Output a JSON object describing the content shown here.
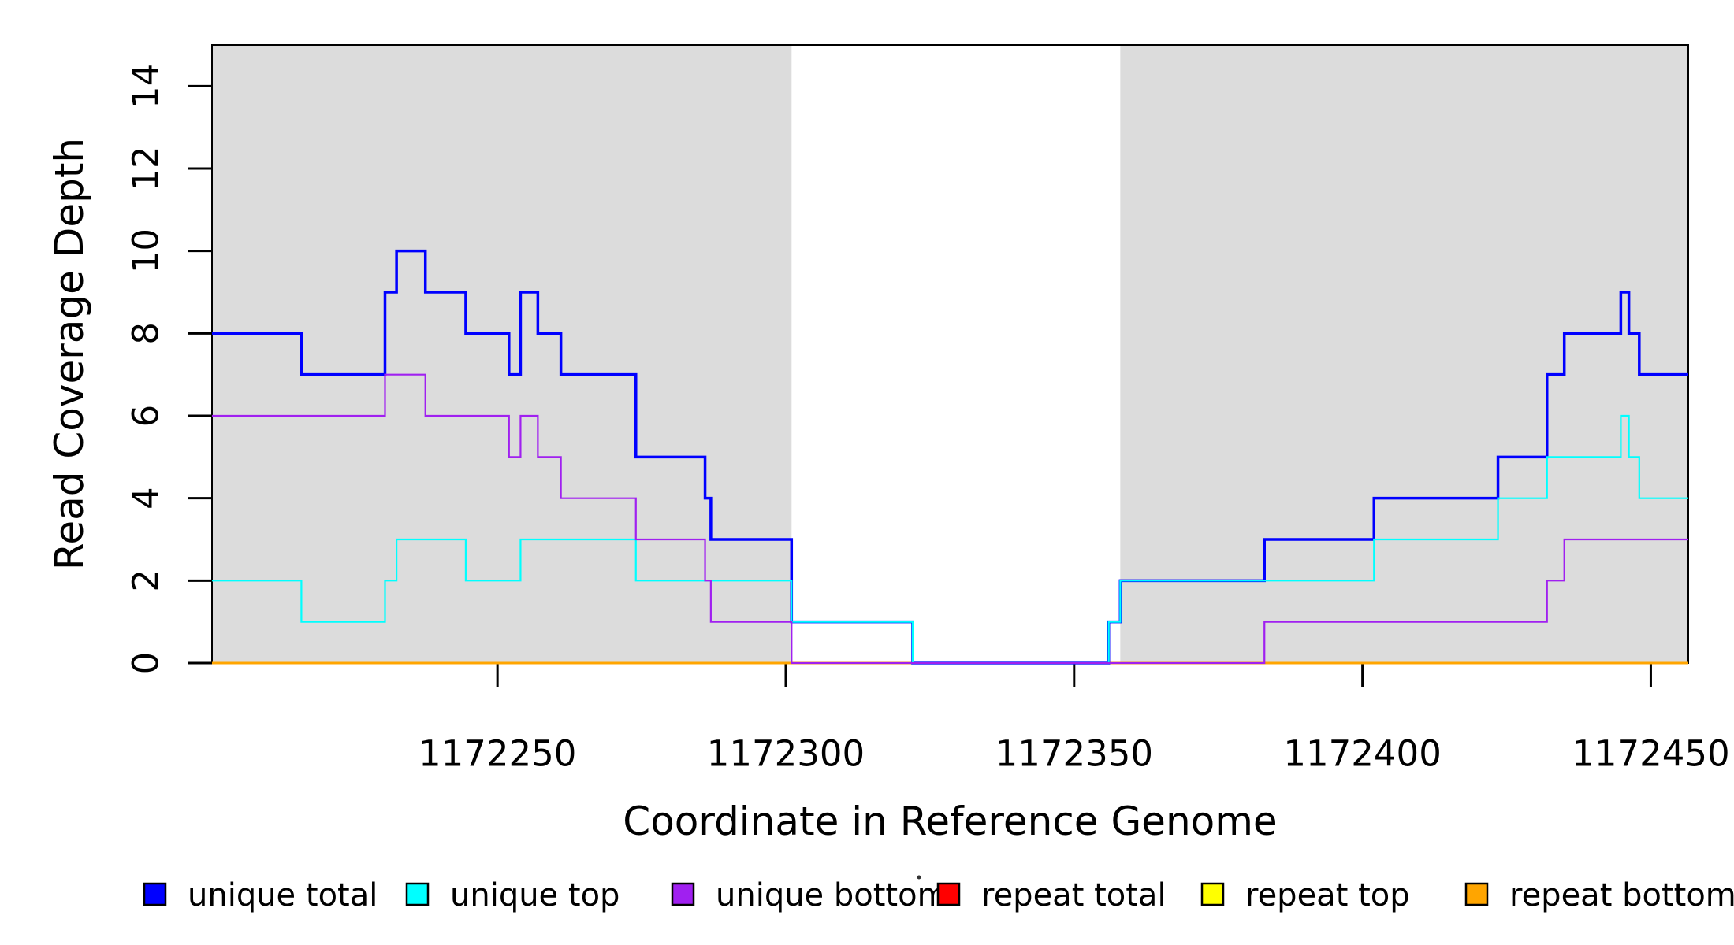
{
  "figure": {
    "background": "#FFFFFF",
    "plot_box_color": "#000000",
    "shade_color": "#DCDCDC",
    "xlabel": "Coordinate in Reference Genome",
    "ylabel": "Read Coverage Depth"
  },
  "chart_data": {
    "type": "line",
    "subtype": "step-coverage",
    "title": "",
    "xlabel": "Coordinate in Reference Genome",
    "ylabel": "Read Coverage Depth",
    "xlim": [
      1172200.5,
      1172456.5
    ],
    "ylim": [
      0,
      15
    ],
    "x_ticks": [
      1172250,
      1172300,
      1172350,
      1172400,
      1172450
    ],
    "y_ticks": [
      0,
      2,
      4,
      6,
      8,
      10,
      12,
      14
    ],
    "grid": false,
    "shaded_regions": [
      {
        "name": "left-gray-region",
        "x0": 1172200.5,
        "x1": 1172301
      },
      {
        "name": "right-gray-region",
        "x0": 1172358,
        "x1": 1172456.5
      }
    ],
    "series": [
      {
        "name": "repeat total",
        "key": "repeat_total",
        "color": "#FF0000",
        "width": 2.5,
        "steps": [
          [
            1172200.5,
            0
          ]
        ]
      },
      {
        "name": "repeat top",
        "key": "repeat_top",
        "color": "#FFFF00",
        "width": 2.5,
        "steps": [
          [
            1172200.5,
            0
          ]
        ]
      },
      {
        "name": "repeat bottom",
        "key": "repeat_bottom",
        "color": "#FFA500",
        "width": 3,
        "steps": [
          [
            1172200.5,
            0
          ]
        ]
      },
      {
        "name": "unique total",
        "key": "unique_total",
        "color": "#0000FF",
        "width": 3.5,
        "steps": [
          [
            1172200.5,
            8
          ],
          [
            1172216,
            7
          ],
          [
            1172230.5,
            9
          ],
          [
            1172232.5,
            10
          ],
          [
            1172237.5,
            9
          ],
          [
            1172244.5,
            8
          ],
          [
            1172252,
            7
          ],
          [
            1172254,
            9
          ],
          [
            1172257,
            8
          ],
          [
            1172261,
            7
          ],
          [
            1172274,
            5
          ],
          [
            1172286,
            4
          ],
          [
            1172287,
            3
          ],
          [
            1172301,
            1
          ],
          [
            1172322,
            0
          ],
          [
            1172356,
            1
          ],
          [
            1172358,
            2
          ],
          [
            1172383,
            3
          ],
          [
            1172402,
            4
          ],
          [
            1172423.5,
            5
          ],
          [
            1172432,
            7
          ],
          [
            1172435,
            8
          ],
          [
            1172444.8,
            9
          ],
          [
            1172446.2,
            8
          ],
          [
            1172448,
            7
          ]
        ]
      },
      {
        "name": "unique top",
        "key": "unique_top",
        "color": "#00FFFF",
        "width": 2.2,
        "steps": [
          [
            1172200.5,
            2
          ],
          [
            1172216,
            1
          ],
          [
            1172230.5,
            2
          ],
          [
            1172232.5,
            3
          ],
          [
            1172244.5,
            2
          ],
          [
            1172254,
            3
          ],
          [
            1172274,
            2
          ],
          [
            1172301,
            1
          ],
          [
            1172322,
            0
          ],
          [
            1172356,
            1
          ],
          [
            1172358,
            2
          ],
          [
            1172402,
            3
          ],
          [
            1172423.5,
            4
          ],
          [
            1172432,
            5
          ],
          [
            1172444.8,
            6
          ],
          [
            1172446.2,
            5
          ],
          [
            1172448,
            4
          ]
        ]
      },
      {
        "name": "unique bottom",
        "key": "unique_bottom",
        "color": "#A020F0",
        "width": 2.2,
        "steps": [
          [
            1172200.5,
            6
          ],
          [
            1172230.5,
            7
          ],
          [
            1172237.5,
            6
          ],
          [
            1172252,
            5
          ],
          [
            1172254,
            6
          ],
          [
            1172257,
            5
          ],
          [
            1172261,
            4
          ],
          [
            1172274,
            3
          ],
          [
            1172286,
            2
          ],
          [
            1172287,
            1
          ],
          [
            1172301,
            0
          ],
          [
            1172383,
            1
          ],
          [
            1172432,
            2
          ],
          [
            1172435,
            3
          ]
        ]
      }
    ],
    "legend": {
      "position": "bottom",
      "entries": [
        {
          "label": "unique total",
          "color": "#0000FF"
        },
        {
          "label": "unique top",
          "color": "#00FFFF"
        },
        {
          "label": "unique bottom",
          "color": "#A020F0"
        },
        {
          "label": "repeat total",
          "color": "#FF0000"
        },
        {
          "label": "repeat top",
          "color": "#FFFF00"
        },
        {
          "label": "repeat bottom",
          "color": "#FFA500"
        }
      ]
    }
  }
}
